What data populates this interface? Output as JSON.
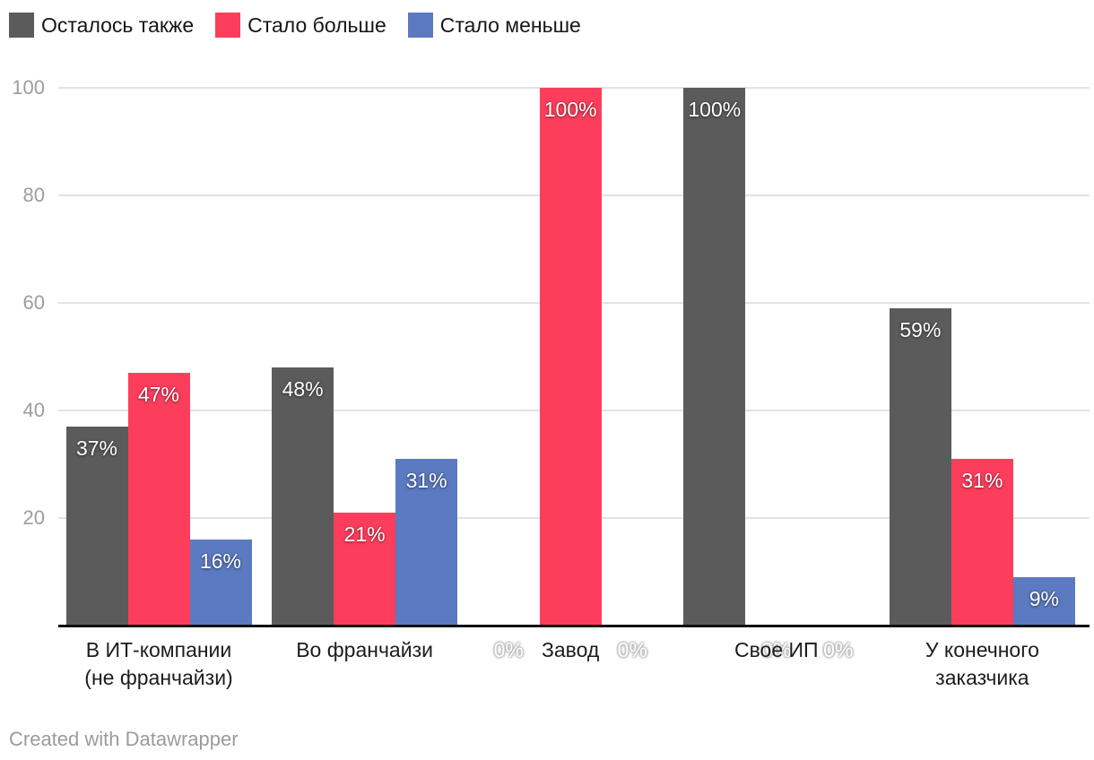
{
  "chart_data": {
    "type": "bar",
    "categories": [
      "В ИТ-компании\n(не франчайзи)",
      "Во франчайзи",
      "Завод",
      "Свое ИП",
      "У конечного\nзаказчика"
    ],
    "series": [
      {
        "name": "Осталось также",
        "color": "#5b5b5b",
        "values": [
          37,
          48,
          0,
          100,
          59
        ]
      },
      {
        "name": "Стало больше",
        "color": "#fc3e5c",
        "values": [
          47,
          21,
          100,
          0,
          31
        ]
      },
      {
        "name": "Стало меньше",
        "color": "#5c7ac1",
        "values": [
          16,
          31,
          0,
          0,
          9
        ]
      }
    ],
    "value_suffix": "%",
    "yticks": [
      20,
      40,
      60,
      80,
      100
    ],
    "ylim": [
      0,
      100
    ],
    "grid": true,
    "legend_position": "top-left",
    "title": ""
  },
  "footer": {
    "credit": "Created with Datawrapper"
  }
}
